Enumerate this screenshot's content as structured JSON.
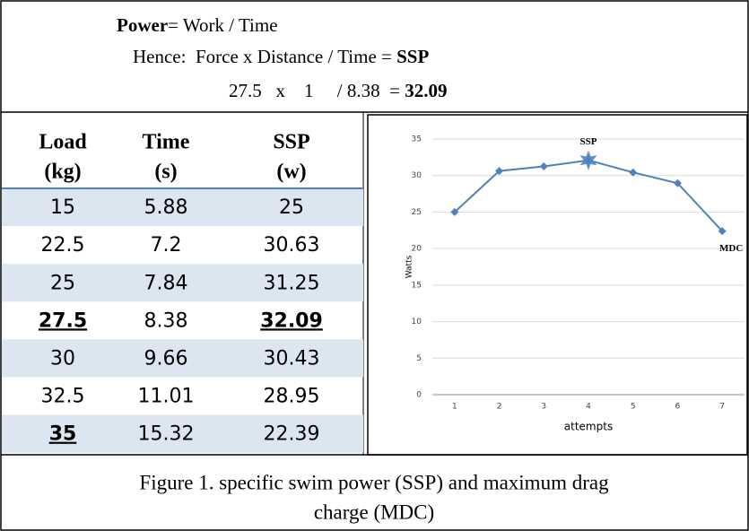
{
  "formula": {
    "lines": [
      {
        "bold": "Power",
        "rest": "= Work / Time"
      },
      {
        "rest": "Hence:  Force x Distance / Time = ",
        "bold": "SSP"
      },
      {
        "rest": "27.5   x    1     / 8.38  = ",
        "bold": "32.09"
      }
    ]
  },
  "table": {
    "header": [
      [
        "Load",
        "(kg)"
      ],
      [
        "Time",
        "(s)"
      ],
      [
        "SSP",
        "(w)"
      ]
    ],
    "rows": [
      [
        "15",
        "5.88",
        "25"
      ],
      [
        "22.5",
        "7.2",
        "30.63"
      ],
      [
        "25",
        "7.84",
        "31.25"
      ],
      [
        "27.5",
        "8.38",
        "32.09"
      ],
      [
        "30",
        "9.66",
        "30.43"
      ],
      [
        "32.5",
        "11.01",
        "28.95"
      ],
      [
        "35",
        "15.32",
        "22.39"
      ]
    ]
  },
  "chart_data": {
    "type": "line",
    "x_label": "attempts",
    "y_label": "Watts",
    "categories": [
      "1",
      "2",
      "3",
      "4",
      "5",
      "6",
      "7"
    ],
    "values": [
      25,
      30.63,
      31.25,
      32.09,
      30.43,
      28.95,
      22.39
    ],
    "color": "#4f81bd",
    "ylim": [
      0,
      35
    ],
    "yticks": [
      0,
      5,
      10,
      15,
      20,
      25,
      30,
      35
    ],
    "grid": true,
    "annotations": [
      {
        "text": "SSP",
        "index": 3
      },
      {
        "text": "MDC",
        "index": 6
      }
    ]
  },
  "caption": [
    "Figure 1. specific swim power (SSP) and maximum drag",
    "charge (MDC)"
  ]
}
